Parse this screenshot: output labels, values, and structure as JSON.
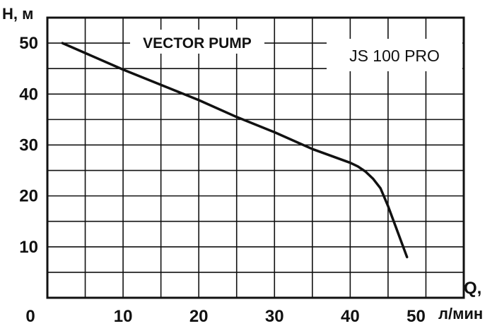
{
  "chart_data": {
    "type": "line",
    "title": "VECTOR PUMP",
    "model": "JS 100 PRO",
    "ylabel": "Н, м",
    "xlabel_top": "Q,",
    "xlabel_unit": "л/мин",
    "xlim": [
      0,
      55
    ],
    "ylim": [
      0,
      55
    ],
    "x_ticks": [
      "0",
      "10",
      "20",
      "30",
      "40",
      "50"
    ],
    "y_ticks": [
      "10",
      "20",
      "30",
      "40",
      "50"
    ],
    "grid": true,
    "series": [
      {
        "points": [
          [
            2,
            50
          ],
          [
            10,
            44.8
          ],
          [
            20,
            38.8
          ],
          [
            25,
            35.5
          ],
          [
            30,
            32.5
          ],
          [
            35,
            29.2
          ],
          [
            40,
            26.5
          ],
          [
            41,
            25.8
          ],
          [
            42,
            24.8
          ],
          [
            43,
            23.4
          ],
          [
            44,
            21.5
          ],
          [
            45,
            18.0
          ],
          [
            46,
            14.0
          ],
          [
            47.5,
            8.0
          ]
        ]
      }
    ]
  }
}
